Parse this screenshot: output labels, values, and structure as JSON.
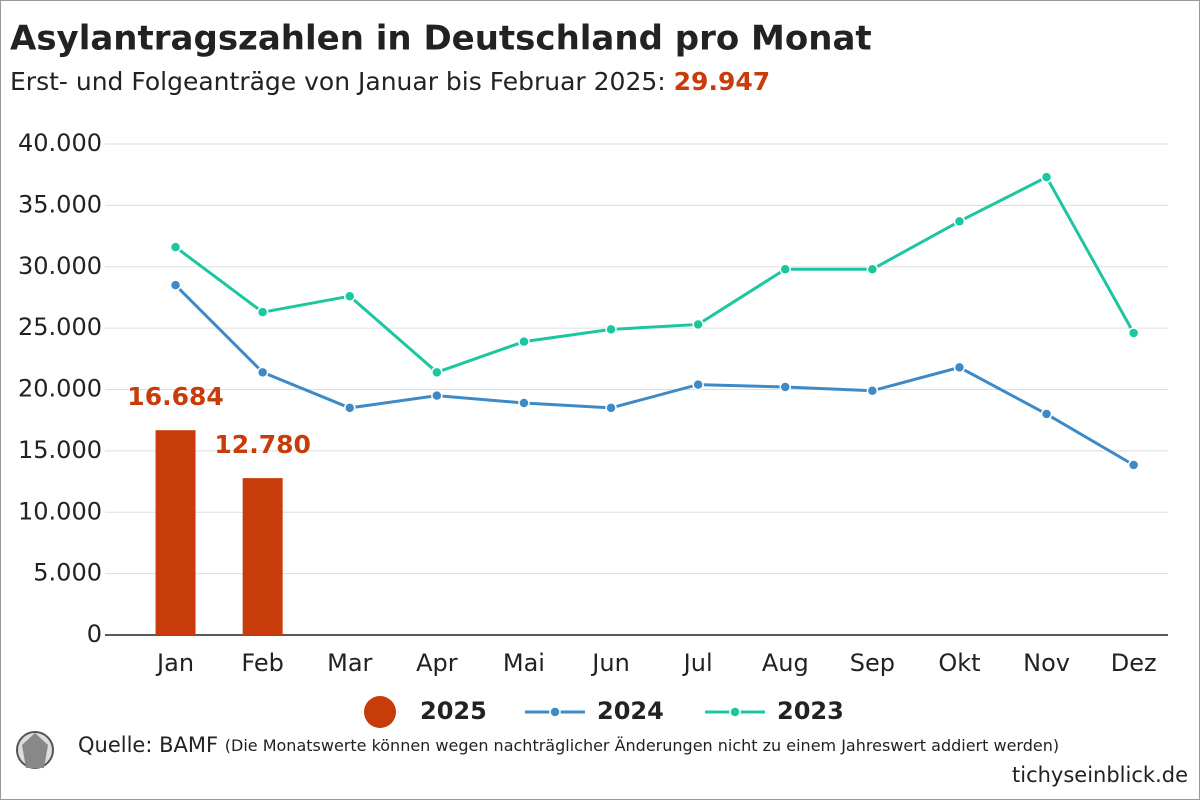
{
  "chart_data": {
    "type": "combo",
    "title": "Asylantragszahlen in Deutschland pro Monat",
    "subtitle": "Erst- und Folgeanträge von Januar bis Februar 2025:",
    "subtitle_value": "29.947",
    "categories": [
      "Jan",
      "Feb",
      "Mar",
      "Apr",
      "Mai",
      "Jun",
      "Jul",
      "Aug",
      "Sep",
      "Okt",
      "Nov",
      "Dez"
    ],
    "series": [
      {
        "name": "2025",
        "type": "bar",
        "color": "#c83c0c",
        "values": [
          16684,
          12780,
          null,
          null,
          null,
          null,
          null,
          null,
          null,
          null,
          null,
          null
        ],
        "value_labels": [
          "16.684",
          "12.780",
          null,
          null,
          null,
          null,
          null,
          null,
          null,
          null,
          null,
          null
        ]
      },
      {
        "name": "2024",
        "type": "line",
        "color": "#3e8ac7",
        "values": [
          28500,
          21400,
          18500,
          19500,
          18900,
          18500,
          20400,
          20200,
          19900,
          21800,
          18000,
          13850
        ]
      },
      {
        "name": "2023",
        "type": "line",
        "color": "#1cc6a0",
        "values": [
          31600,
          26300,
          27600,
          21400,
          23900,
          24900,
          25300,
          29800,
          29800,
          33700,
          37300,
          24600
        ]
      }
    ],
    "ylim": [
      0,
      40000
    ],
    "yticks": [
      0,
      {
        "value": 5000,
        "label": "5.000"
      },
      {
        "value": 10000,
        "label": "10.000"
      },
      {
        "value": 15000,
        "label": "15.000"
      },
      {
        "value": 20000,
        "label": "20.000"
      },
      {
        "value": 25000,
        "label": "25.000"
      },
      {
        "value": 30000,
        "label": "30.000"
      },
      {
        "value": 35000,
        "label": "35.000"
      },
      {
        "value": 40000,
        "label": "40.000"
      }
    ],
    "grid": true,
    "source": "Quelle: BAMF",
    "note": "(Die Monatswerte können wegen nachträglicher Änderungen nicht zu einem Jahreswert addiert werden)",
    "publisher": "tichyseinblick.de"
  }
}
